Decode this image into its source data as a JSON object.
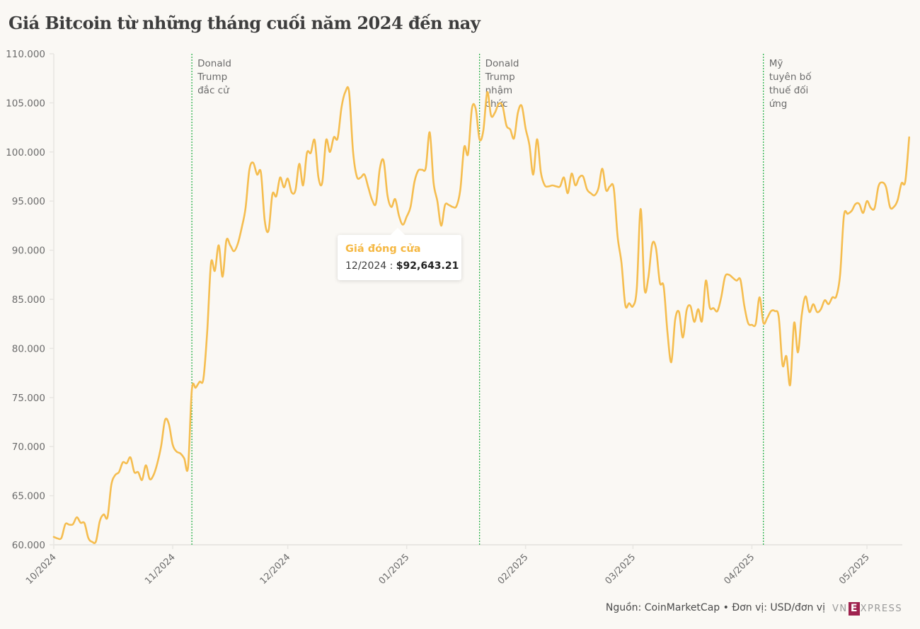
{
  "title": "Giá Bitcoin từ những tháng cuối năm 2024 đến nay",
  "tooltip": {
    "title": "Giá đóng cửa",
    "label": "12/2024 : ",
    "value": "$92,643.21"
  },
  "footer": {
    "source": "Nguồn: CoinMarketCap • Đơn vị: USD/đơn vị",
    "logo_left": "VN",
    "logo_e": "E",
    "logo_right": "XPRESS"
  },
  "colors": {
    "line": "#f5bd4f",
    "event_line": "#2bb24c",
    "axis": "#e8e6e2",
    "text": "#6b6b6b"
  },
  "chart_data": {
    "type": "line",
    "title": "Giá Bitcoin từ những tháng cuối năm 2024 đến nay",
    "xlabel": "",
    "ylabel": "",
    "series_name": "Giá đóng cửa",
    "unit": "USD/đơn vị",
    "start_date": "2024-10-01",
    "ylim": [
      60000,
      110000
    ],
    "yticks": [
      60000,
      65000,
      70000,
      75000,
      80000,
      85000,
      90000,
      95000,
      100000,
      105000,
      110000
    ],
    "ytick_labels": [
      "60.000",
      "65.000",
      "70.000",
      "75.000",
      "80.000",
      "85.000",
      "90.000",
      "95.000",
      "100.000",
      "105.000",
      "110.000"
    ],
    "xticks": [
      {
        "label": "10/2024",
        "day": 0
      },
      {
        "label": "11/2024",
        "day": 31
      },
      {
        "label": "12/2024",
        "day": 61
      },
      {
        "label": "01/2025",
        "day": 92
      },
      {
        "label": "02/2025",
        "day": 123
      },
      {
        "label": "03/2025",
        "day": 151
      },
      {
        "label": "04/2025",
        "day": 182
      },
      {
        "label": "05/2025",
        "day": 212
      }
    ],
    "xlim_days": [
      0,
      219
    ],
    "annotations": [
      {
        "day": 36,
        "lines": [
          "Donald",
          "Trump",
          "đắc cử"
        ]
      },
      {
        "day": 111,
        "lines": [
          "Donald",
          "Trump",
          "nhậm",
          "chức"
        ]
      },
      {
        "day": 185,
        "lines": [
          "Mỹ",
          "tuyên bố",
          "thuế đối",
          "ứng"
        ]
      }
    ],
    "values": [
      60800,
      60650,
      60700,
      62100,
      62050,
      62100,
      62800,
      62250,
      62200,
      60700,
      60300,
      60350,
      62400,
      63100,
      62800,
      66100,
      67100,
      67400,
      68400,
      68300,
      68900,
      67400,
      67400,
      66600,
      68100,
      66700,
      67100,
      68300,
      70100,
      72700,
      72300,
      70200,
      69500,
      69300,
      68800,
      67900,
      75800,
      76000,
      76600,
      76900,
      81700,
      88700,
      87900,
      90500,
      87300,
      91000,
      90500,
      89900,
      90700,
      92300,
      94300,
      98200,
      98900,
      97700,
      97900,
      93000,
      92000,
      95700,
      95500,
      97400,
      96400,
      97300,
      95900,
      96100,
      98800,
      96600,
      99900,
      99900,
      101200,
      97400,
      96900,
      101200,
      100000,
      101500,
      101400,
      104500,
      106100,
      106100,
      100100,
      97500,
      97400,
      97700,
      96400,
      95100,
      94800,
      98300,
      99100,
      95600,
      94400,
      95200,
      93500,
      92600,
      93400,
      94400,
      96900,
      98100,
      98200,
      98400,
      102000,
      96900,
      95000,
      92500,
      94600,
      94600,
      94400,
      94500,
      96200,
      100500,
      99800,
      104400,
      104400,
      101300,
      102200,
      106100,
      103700,
      104000,
      104900,
      104700,
      102700,
      102300,
      101400,
      104000,
      104700,
      102400,
      100700,
      97700,
      101300,
      97900,
      96600,
      96500,
      96600,
      96500,
      96500,
      97400,
      95800,
      97800,
      96600,
      97400,
      97500,
      96200,
      95800,
      95600,
      96300,
      98300,
      96100,
      96500,
      96300,
      91400,
      88700,
      84400,
      84600,
      84300,
      86100,
      94200,
      86100,
      87200,
      90600,
      90200,
      86700,
      86300,
      81600,
      78600,
      82900,
      83700,
      81100,
      83900,
      84300,
      82700,
      84000,
      82800,
      86900,
      84200,
      84100,
      83800,
      85200,
      87300,
      87500,
      87200,
      86900,
      87000,
      84400,
      82600,
      82400,
      82500,
      85200,
      82600,
      83100,
      83800,
      83800,
      83200,
      78300,
      79200,
      76300,
      82600,
      79600,
      83400,
      85300,
      83700,
      84500,
      83700,
      84000,
      84900,
      84500,
      85200,
      85300,
      87500,
      93500,
      93700,
      94000,
      94700,
      94700,
      93800,
      95000,
      94300,
      94300,
      96500,
      96900,
      96400,
      94400,
      94400,
      95100,
      96800,
      97000,
      101500
    ]
  }
}
